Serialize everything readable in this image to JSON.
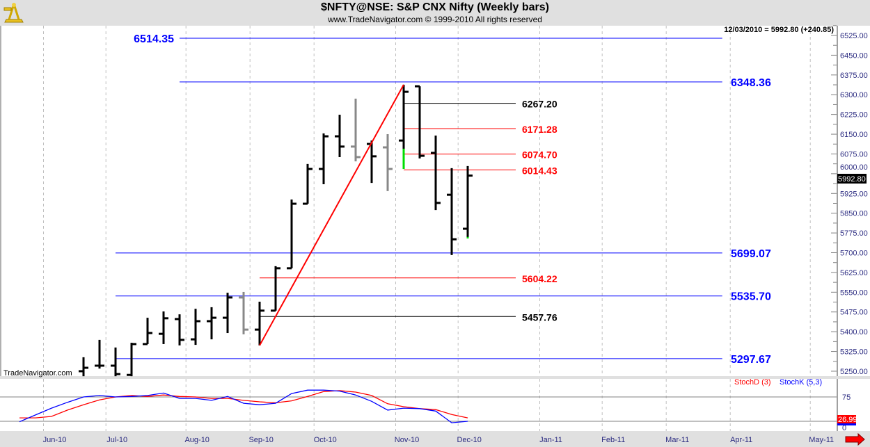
{
  "header": {
    "title": "$NFTY@NSE:  S&P CNX Nifty  (Weekly bars)",
    "subtitle": "www.TradeNavigator.com © 1999-2010 All rights reserved",
    "logo_icon": "sextant-icon"
  },
  "readout": "12/03/2010 = 5992.80 (+240.85)",
  "watermark": "TradeNavigator.com",
  "last_price_label": "5992.80",
  "colors": {
    "up_bar": "#000000",
    "alt_bar": "#888888",
    "highlight": "#00dd00",
    "blue": "#0000ff",
    "red": "#ff0000",
    "black": "#000000"
  },
  "chart_data": [
    {
      "type": "ohlc",
      "title": "$NFTY@NSE: S&P CNX Nifty (Weekly bars)",
      "ylim": [
        5230,
        6560
      ],
      "yticks": [
        6525,
        6450,
        6375,
        6300,
        6225,
        6150,
        6075,
        6000,
        5925,
        5850,
        5775,
        5700,
        5625,
        5550,
        5475,
        5400,
        5325,
        5250
      ],
      "ytick_labels": [
        "6525.00",
        "6450.00",
        "6375.00",
        "6300.00",
        "6225.00",
        "6150.00",
        "6075.00",
        "6000.00",
        "5925.00",
        "5850.00",
        "5775.00",
        "5700.00",
        "5625.00",
        "5550.00",
        "5475.00",
        "5400.00",
        "5325.00",
        "5250.00"
      ],
      "x_unit": "week index",
      "xlim": [
        -1.2,
        51
      ],
      "xticks": [
        {
          "label": "Jun-10",
          "week": 1.5
        },
        {
          "label": "Jul-10",
          "week": 5.4
        },
        {
          "label": "Aug-10",
          "week": 10.4
        },
        {
          "label": "Sep-10",
          "week": 14.4
        },
        {
          "label": "Oct-10",
          "week": 18.4
        },
        {
          "label": "Nov-10",
          "week": 23.5
        },
        {
          "label": "Dec-10",
          "week": 27.4
        },
        {
          "label": "Jan-11",
          "week": 32.5
        },
        {
          "label": "Feb-11",
          "week": 36.4
        },
        {
          "label": "Mar-11",
          "week": 40.4
        },
        {
          "label": "Apr-11",
          "week": 44.4
        },
        {
          "label": "May-11",
          "week": 49.4
        }
      ],
      "bars": [
        {
          "week": 4,
          "o": 5250,
          "h": 5303,
          "l": 5231,
          "c": 5263,
          "color": "black"
        },
        {
          "week": 5,
          "o": 5271,
          "h": 5369,
          "l": 5260,
          "c": 5271,
          "color": "black"
        },
        {
          "week": 6,
          "o": 5271,
          "h": 5340,
          "l": 5231,
          "c": 5239,
          "color": "black"
        },
        {
          "week": 7,
          "o": 5236,
          "h": 5358,
          "l": 5231,
          "c": 5353,
          "color": "black"
        },
        {
          "week": 8,
          "o": 5353,
          "h": 5453,
          "l": 5353,
          "c": 5395,
          "color": "black"
        },
        {
          "week": 9,
          "o": 5392,
          "h": 5477,
          "l": 5353,
          "c": 5451,
          "color": "black"
        },
        {
          "week": 10,
          "o": 5448,
          "h": 5466,
          "l": 5348,
          "c": 5369,
          "color": "black"
        },
        {
          "week": 11,
          "o": 5371,
          "h": 5487,
          "l": 5350,
          "c": 5440,
          "color": "black"
        },
        {
          "week": 12,
          "o": 5440,
          "h": 5493,
          "l": 5371,
          "c": 5453,
          "color": "black"
        },
        {
          "week": 13,
          "o": 5453,
          "h": 5548,
          "l": 5395,
          "c": 5530,
          "color": "black"
        },
        {
          "week": 14,
          "o": 5530,
          "h": 5551,
          "l": 5390,
          "c": 5408,
          "color": "gray"
        },
        {
          "week": 15,
          "o": 5408,
          "h": 5514,
          "l": 5348,
          "c": 5480,
          "color": "black"
        },
        {
          "week": 16,
          "o": 5480,
          "h": 5649,
          "l": 5480,
          "c": 5641,
          "color": "black"
        },
        {
          "week": 17,
          "o": 5641,
          "h": 5902,
          "l": 5641,
          "c": 5886,
          "color": "black"
        },
        {
          "week": 18,
          "o": 5886,
          "h": 6037,
          "l": 5886,
          "c": 6018,
          "color": "black"
        },
        {
          "week": 19,
          "o": 6018,
          "h": 6153,
          "l": 5960,
          "c": 6142,
          "color": "black"
        },
        {
          "week": 20,
          "o": 6142,
          "h": 6224,
          "l": 6063,
          "c": 6103,
          "color": "black"
        },
        {
          "week": 21,
          "o": 6103,
          "h": 6285,
          "l": 6047,
          "c": 6063,
          "color": "gray"
        },
        {
          "week": 22,
          "o": 6113,
          "h": 6126,
          "l": 5965,
          "c": 6066,
          "color": "black"
        },
        {
          "week": 23,
          "o": 6100,
          "h": 6150,
          "l": 5934,
          "c": 6018,
          "color": "gray"
        },
        {
          "week": 24,
          "o": 6126,
          "h": 6338,
          "l": 6018,
          "c": 6311,
          "color": "black",
          "highlight": [
            6018,
            6095
          ]
        },
        {
          "week": 25,
          "o": 6332,
          "h": 6332,
          "l": 6058,
          "c": 6068,
          "color": "black"
        },
        {
          "week": 26,
          "o": 6079,
          "h": 6145,
          "l": 5862,
          "c": 5889,
          "color": "black"
        },
        {
          "week": 27,
          "o": 5920,
          "h": 6021,
          "l": 5691,
          "c": 5751,
          "color": "black"
        },
        {
          "week": 28,
          "o": 5791,
          "h": 6029,
          "l": 5754,
          "c": 5992.8,
          "color": "black",
          "highlight": [
            5754,
            5760
          ]
        }
      ],
      "levels": [
        {
          "value": 6514.35,
          "label": "6514.35",
          "color": "blue",
          "from": 10,
          "to": 43.9,
          "label_side": "left"
        },
        {
          "value": 6348.36,
          "label": "6348.36",
          "color": "blue",
          "from": 10,
          "to": 43.9,
          "label_side": "right"
        },
        {
          "value": 6267.2,
          "label": "6267.20",
          "color": "black",
          "from": 24,
          "to": 31,
          "label_side": "right"
        },
        {
          "value": 6171.28,
          "label": "6171.28",
          "color": "red",
          "from": 24,
          "to": 31,
          "label_side": "right"
        },
        {
          "value": 6074.7,
          "label": "6074.70",
          "color": "red",
          "from": 24,
          "to": 31,
          "label_side": "right"
        },
        {
          "value": 6014.43,
          "label": "6014.43",
          "color": "red",
          "from": 24,
          "to": 31,
          "label_side": "right"
        },
        {
          "value": 5699.07,
          "label": "5699.07",
          "color": "blue",
          "from": 6,
          "to": 43.9,
          "label_side": "right"
        },
        {
          "value": 5604.22,
          "label": "5604.22",
          "color": "red",
          "from": 15,
          "to": 31,
          "label_side": "right"
        },
        {
          "value": 5535.7,
          "label": "5535.70",
          "color": "blue",
          "from": 6,
          "to": 43.9,
          "label_side": "right"
        },
        {
          "value": 5457.76,
          "label": "5457.76",
          "color": "black",
          "from": 15,
          "to": 31,
          "label_side": "right"
        },
        {
          "value": 5297.67,
          "label": "5297.67",
          "color": "blue",
          "from": 6,
          "to": 43.9,
          "label_side": "right"
        }
      ],
      "trendline": {
        "from": {
          "week": 15,
          "price": 5348
        },
        "to": {
          "week": 24,
          "price": 6338
        },
        "color": "red"
      }
    },
    {
      "type": "line",
      "title": "Stochastic",
      "ylim": [
        0,
        100
      ],
      "yticks": [
        75,
        0
      ],
      "ytick_labels": [
        "75",
        "0"
      ],
      "reference_lines": [
        75,
        25
      ],
      "last_value_label": "26.99",
      "x_start_week": 0,
      "series": [
        {
          "name": "StochD (3)",
          "color": "red",
          "values": [
            32,
            32,
            35,
            48,
            59,
            69,
            75,
            78,
            76,
            79,
            76,
            75,
            72,
            72,
            68,
            65,
            63,
            67,
            76,
            86,
            88,
            85,
            78,
            61,
            55,
            51,
            49,
            39,
            32
          ]
        },
        {
          "name": "StochK (5,3)",
          "color": "blue",
          "values": [
            24,
            38,
            52,
            64,
            75,
            78,
            75,
            76,
            78,
            83,
            72,
            72,
            68,
            76,
            62,
            59,
            62,
            82,
            89,
            89,
            87,
            79,
            66,
            48,
            52,
            51,
            46,
            22,
            25
          ]
        }
      ]
    }
  ]
}
